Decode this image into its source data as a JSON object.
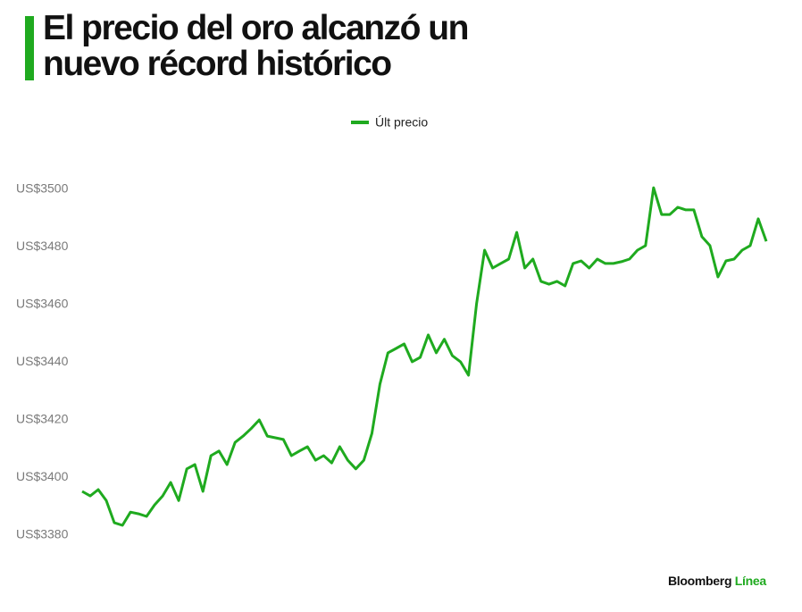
{
  "chart_data": {
    "type": "line",
    "title": "El precio del oro alcanzó un nuevo récord histórico",
    "series": [
      {
        "name": "Últ precio",
        "color": "#1faa1f",
        "values": [
          3395.2,
          3393.6,
          3395.8,
          3392,
          3384.3,
          3383.4,
          3388,
          3387.4,
          3386.5,
          3390.5,
          3393.6,
          3398.3,
          3392,
          3403,
          3404.5,
          3395.2,
          3407.6,
          3409.2,
          3404.5,
          3412.2,
          3414.4,
          3417,
          3420,
          3414.4,
          3413.8,
          3413.2,
          3407.6,
          3409.2,
          3410.7,
          3406,
          3407.6,
          3405.1,
          3410.7,
          3406,
          3403,
          3406,
          3415.3,
          3432.4,
          3443.3,
          3444.8,
          3446.4,
          3440.2,
          3441.7,
          3449.5,
          3443.3,
          3448,
          3442.3,
          3440.2,
          3435.5,
          3460.3,
          3478.9,
          3472.7,
          3474.3,
          3475.8,
          3485.1,
          3472.7,
          3475.8,
          3468.1,
          3467.1,
          3468.1,
          3466.5,
          3474.3,
          3475.2,
          3472.7,
          3475.8,
          3474.3,
          3474.3,
          3474.9,
          3475.8,
          3478.9,
          3480.5,
          3500.6,
          3491.3,
          3491.3,
          3493.8,
          3492.9,
          3492.9,
          3483.6,
          3480.5,
          3469.6,
          3475.2,
          3475.8,
          3478.9,
          3480.5,
          3489.8,
          3482
        ]
      }
    ],
    "ylim": [
      3380,
      3500
    ],
    "yticks": [
      {
        "value": 3380,
        "label": "US$3380"
      },
      {
        "value": 3400,
        "label": "US$3400"
      },
      {
        "value": 3420,
        "label": "US$3420"
      },
      {
        "value": 3440,
        "label": "US$3440"
      },
      {
        "value": 3460,
        "label": "US$3460"
      },
      {
        "value": 3480,
        "label": "US$3480"
      },
      {
        "value": 3500,
        "label": "US$3500"
      }
    ],
    "grid": false,
    "legend": "top",
    "source": "Bloomberg",
    "source_brand": "Línea"
  }
}
